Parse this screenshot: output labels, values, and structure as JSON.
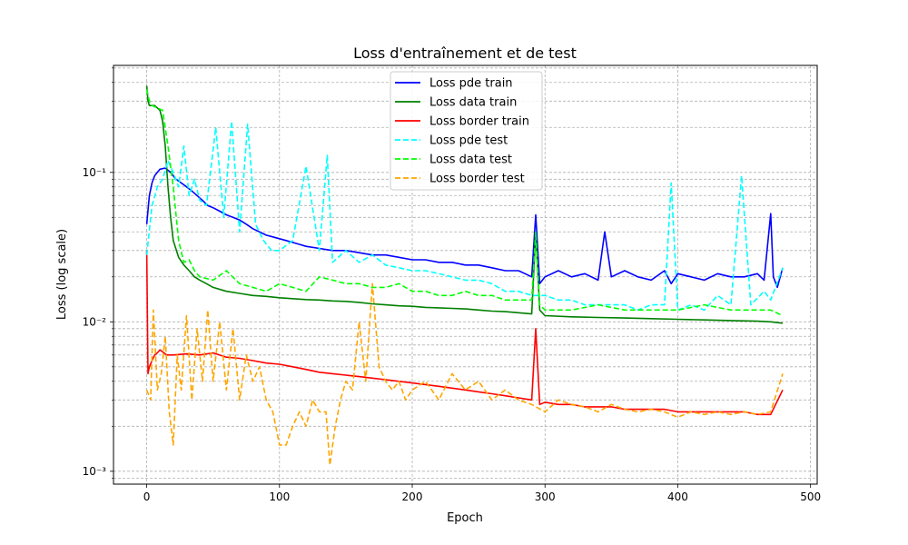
{
  "chart_data": {
    "type": "line",
    "title": "Loss d'entraînement et de test",
    "xlabel": "Epoch",
    "ylabel": "Loss (log scale)",
    "xlim": [
      -25,
      505
    ],
    "ylim": [
      0.00082,
      0.52
    ],
    "yscale": "log",
    "grid": true,
    "grid_style": "dashed",
    "legend_position": "top-center",
    "x_ticks": [
      0,
      100,
      200,
      300,
      400,
      500
    ],
    "x_tick_labels": [
      "0",
      "100",
      "200",
      "300",
      "400",
      "500"
    ],
    "y_major_ticks": [
      0.001,
      0.01,
      0.1
    ],
    "y_tick_labels": [
      "10⁻³",
      "10⁻²",
      "10⁻¹"
    ],
    "series": [
      {
        "name": "Loss pde train",
        "color": "#0000ff",
        "dash": "solid",
        "x": [
          0,
          2,
          4,
          6,
          8,
          10,
          14,
          18,
          22,
          26,
          30,
          34,
          38,
          42,
          46,
          50,
          55,
          60,
          65,
          70,
          75,
          80,
          85,
          90,
          95,
          100,
          105,
          110,
          115,
          120,
          130,
          140,
          150,
          160,
          170,
          180,
          190,
          200,
          210,
          220,
          230,
          240,
          250,
          260,
          270,
          280,
          285,
          290,
          293,
          296,
          300,
          310,
          320,
          330,
          340,
          345,
          350,
          360,
          370,
          380,
          390,
          395,
          400,
          410,
          420,
          430,
          440,
          450,
          460,
          465,
          470,
          472,
          475,
          479
        ],
        "y": [
          0.045,
          0.07,
          0.085,
          0.095,
          0.1,
          0.105,
          0.107,
          0.1,
          0.09,
          0.085,
          0.08,
          0.075,
          0.07,
          0.065,
          0.06,
          0.058,
          0.055,
          0.052,
          0.05,
          0.048,
          0.045,
          0.042,
          0.04,
          0.038,
          0.037,
          0.036,
          0.035,
          0.034,
          0.033,
          0.032,
          0.031,
          0.03,
          0.03,
          0.029,
          0.028,
          0.028,
          0.027,
          0.026,
          0.026,
          0.025,
          0.025,
          0.024,
          0.024,
          0.023,
          0.022,
          0.022,
          0.021,
          0.02,
          0.052,
          0.018,
          0.02,
          0.022,
          0.02,
          0.021,
          0.019,
          0.04,
          0.02,
          0.022,
          0.02,
          0.019,
          0.022,
          0.018,
          0.021,
          0.02,
          0.019,
          0.021,
          0.02,
          0.02,
          0.021,
          0.019,
          0.053,
          0.02,
          0.017,
          0.023
        ]
      },
      {
        "name": "Loss data train",
        "color": "#008000",
        "dash": "solid",
        "x": [
          0,
          1,
          2,
          4,
          6,
          8,
          10,
          12,
          14,
          16,
          18,
          20,
          24,
          28,
          32,
          36,
          40,
          45,
          50,
          60,
          70,
          80,
          90,
          100,
          110,
          120,
          130,
          140,
          150,
          160,
          170,
          180,
          190,
          200,
          210,
          220,
          230,
          240,
          250,
          260,
          270,
          280,
          290,
          293,
          296,
          300,
          320,
          340,
          360,
          380,
          400,
          420,
          440,
          460,
          470,
          479
        ],
        "y": [
          0.38,
          0.3,
          0.28,
          0.28,
          0.28,
          0.27,
          0.26,
          0.22,
          0.15,
          0.08,
          0.05,
          0.035,
          0.027,
          0.024,
          0.022,
          0.02,
          0.019,
          0.018,
          0.017,
          0.016,
          0.0155,
          0.015,
          0.0148,
          0.0145,
          0.0143,
          0.0141,
          0.014,
          0.0138,
          0.0137,
          0.0135,
          0.0132,
          0.013,
          0.0128,
          0.0127,
          0.0125,
          0.0124,
          0.0123,
          0.0122,
          0.012,
          0.0118,
          0.0117,
          0.0115,
          0.0113,
          0.04,
          0.012,
          0.011,
          0.0108,
          0.0107,
          0.0106,
          0.0105,
          0.0104,
          0.0103,
          0.0102,
          0.0101,
          0.01,
          0.0098
        ]
      },
      {
        "name": "Loss border train",
        "color": "#ff0000",
        "dash": "solid",
        "x": [
          0,
          1,
          2,
          4,
          6,
          8,
          10,
          15,
          20,
          30,
          40,
          50,
          60,
          70,
          80,
          90,
          100,
          110,
          120,
          130,
          140,
          150,
          160,
          170,
          180,
          190,
          200,
          210,
          220,
          230,
          240,
          250,
          260,
          270,
          280,
          290,
          293,
          296,
          300,
          310,
          320,
          330,
          340,
          350,
          360,
          370,
          380,
          390,
          400,
          410,
          420,
          430,
          440,
          450,
          460,
          470,
          479
        ],
        "y": [
          0.03,
          0.0045,
          0.005,
          0.0055,
          0.006,
          0.0062,
          0.0065,
          0.006,
          0.006,
          0.0061,
          0.006,
          0.0062,
          0.0058,
          0.0057,
          0.0055,
          0.0053,
          0.0052,
          0.005,
          0.0048,
          0.0046,
          0.0045,
          0.0044,
          0.0043,
          0.0042,
          0.0041,
          0.004,
          0.0039,
          0.0038,
          0.0037,
          0.0036,
          0.0035,
          0.0034,
          0.0033,
          0.0032,
          0.0031,
          0.003,
          0.009,
          0.0028,
          0.0029,
          0.0028,
          0.0028,
          0.0027,
          0.0027,
          0.0027,
          0.0026,
          0.0026,
          0.0026,
          0.0026,
          0.0025,
          0.0025,
          0.0025,
          0.0025,
          0.0025,
          0.0025,
          0.0024,
          0.0024,
          0.0035
        ]
      },
      {
        "name": "Loss pde test",
        "color": "#00ffff",
        "dash": "dashed",
        "x": [
          0,
          4,
          8,
          12,
          16,
          20,
          24,
          28,
          32,
          36,
          40,
          45,
          52,
          58,
          64,
          70,
          76,
          82,
          88,
          94,
          100,
          110,
          120,
          130,
          136,
          140,
          150,
          160,
          170,
          180,
          190,
          200,
          210,
          220,
          230,
          240,
          250,
          260,
          270,
          280,
          290,
          300,
          310,
          320,
          330,
          340,
          350,
          360,
          370,
          380,
          390,
          395,
          400,
          410,
          420,
          430,
          440,
          448,
          455,
          465,
          470,
          479
        ],
        "y": [
          0.028,
          0.06,
          0.08,
          0.09,
          0.12,
          0.1,
          0.08,
          0.15,
          0.07,
          0.09,
          0.065,
          0.06,
          0.2,
          0.05,
          0.22,
          0.04,
          0.21,
          0.045,
          0.035,
          0.03,
          0.03,
          0.035,
          0.11,
          0.03,
          0.13,
          0.025,
          0.03,
          0.025,
          0.028,
          0.024,
          0.023,
          0.022,
          0.022,
          0.021,
          0.02,
          0.019,
          0.019,
          0.018,
          0.016,
          0.016,
          0.015,
          0.015,
          0.014,
          0.014,
          0.013,
          0.013,
          0.013,
          0.013,
          0.012,
          0.013,
          0.013,
          0.085,
          0.012,
          0.013,
          0.012,
          0.015,
          0.013,
          0.095,
          0.013,
          0.016,
          0.014,
          0.023
        ]
      },
      {
        "name": "Loss data test",
        "color": "#00ff00",
        "dash": "dashed",
        "x": [
          0,
          2,
          4,
          8,
          12,
          16,
          20,
          24,
          28,
          32,
          36,
          40,
          50,
          60,
          70,
          80,
          90,
          100,
          110,
          120,
          130,
          140,
          150,
          160,
          170,
          180,
          190,
          200,
          210,
          220,
          230,
          240,
          250,
          260,
          270,
          280,
          290,
          293,
          296,
          300,
          320,
          340,
          360,
          380,
          400,
          420,
          440,
          460,
          470,
          479
        ],
        "y": [
          0.36,
          0.3,
          0.28,
          0.27,
          0.26,
          0.15,
          0.08,
          0.035,
          0.025,
          0.026,
          0.022,
          0.02,
          0.019,
          0.022,
          0.018,
          0.017,
          0.016,
          0.018,
          0.017,
          0.016,
          0.02,
          0.019,
          0.018,
          0.018,
          0.017,
          0.017,
          0.018,
          0.016,
          0.016,
          0.015,
          0.015,
          0.016,
          0.015,
          0.015,
          0.014,
          0.014,
          0.014,
          0.04,
          0.013,
          0.012,
          0.012,
          0.013,
          0.012,
          0.012,
          0.012,
          0.013,
          0.012,
          0.012,
          0.012,
          0.011
        ]
      },
      {
        "name": "Loss border test",
        "color": "#ffa500",
        "dash": "dashed",
        "x": [
          0,
          3,
          5,
          8,
          11,
          14,
          17,
          20,
          23,
          26,
          30,
          34,
          38,
          42,
          46,
          50,
          55,
          60,
          65,
          70,
          75,
          80,
          85,
          90,
          95,
          100,
          105,
          110,
          115,
          120,
          125,
          130,
          135,
          138,
          142,
          146,
          150,
          155,
          160,
          165,
          170,
          175,
          180,
          185,
          190,
          195,
          200,
          210,
          220,
          230,
          240,
          250,
          260,
          270,
          280,
          290,
          300,
          310,
          320,
          330,
          340,
          350,
          360,
          370,
          380,
          390,
          400,
          410,
          420,
          430,
          440,
          450,
          460,
          470,
          479
        ],
        "y": [
          0.0035,
          0.003,
          0.012,
          0.0035,
          0.0045,
          0.008,
          0.0025,
          0.0015,
          0.006,
          0.0035,
          0.011,
          0.003,
          0.009,
          0.004,
          0.012,
          0.004,
          0.01,
          0.0035,
          0.009,
          0.003,
          0.006,
          0.004,
          0.005,
          0.003,
          0.0025,
          0.0015,
          0.0015,
          0.002,
          0.0025,
          0.002,
          0.003,
          0.0025,
          0.0025,
          0.0011,
          0.002,
          0.003,
          0.004,
          0.0035,
          0.01,
          0.004,
          0.018,
          0.005,
          0.004,
          0.0035,
          0.004,
          0.003,
          0.0035,
          0.004,
          0.003,
          0.0045,
          0.0035,
          0.004,
          0.003,
          0.0035,
          0.003,
          0.0028,
          0.0025,
          0.003,
          0.0028,
          0.0027,
          0.0025,
          0.0028,
          0.0026,
          0.0025,
          0.0026,
          0.0025,
          0.0023,
          0.0025,
          0.0024,
          0.0025,
          0.0024,
          0.0025,
          0.0024,
          0.0025,
          0.0045
        ]
      }
    ]
  }
}
